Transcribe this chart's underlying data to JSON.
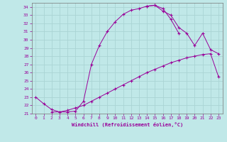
{
  "xlabel": "Windchill (Refroidissement éolien,°C)",
  "xlim": [
    -0.5,
    23.5
  ],
  "ylim": [
    21,
    34.5
  ],
  "yticks": [
    21,
    22,
    23,
    24,
    25,
    26,
    27,
    28,
    29,
    30,
    31,
    32,
    33,
    34
  ],
  "xticks": [
    0,
    1,
    2,
    3,
    4,
    5,
    6,
    7,
    8,
    9,
    10,
    11,
    12,
    13,
    14,
    15,
    16,
    17,
    18,
    19,
    20,
    21,
    22,
    23
  ],
  "bg_color": "#c0e8e8",
  "line_color": "#990099",
  "grid_color": "#aad4d4",
  "curve1_x": [
    0,
    1,
    2,
    3,
    4,
    5,
    6,
    7,
    8,
    9,
    10,
    11,
    12,
    13,
    14,
    15,
    16,
    17,
    18
  ],
  "curve1_y": [
    23.0,
    22.2,
    21.5,
    21.2,
    21.2,
    21.3,
    22.5,
    27.0,
    29.3,
    31.0,
    32.2,
    33.1,
    33.6,
    33.8,
    34.1,
    34.2,
    33.8,
    32.5,
    30.8
  ],
  "curve2_x": [
    2,
    3,
    4,
    5,
    6,
    7,
    8,
    9,
    10,
    11,
    12,
    13,
    14,
    15,
    16,
    17,
    18,
    19,
    20,
    21,
    22,
    23
  ],
  "curve2_y": [
    21.2,
    21.2,
    21.4,
    21.7,
    22.0,
    22.5,
    23.0,
    23.5,
    24.0,
    24.5,
    25.0,
    25.5,
    26.0,
    26.4,
    26.8,
    27.2,
    27.5,
    27.8,
    28.0,
    28.2,
    28.3,
    25.5
  ],
  "curve3_x": [
    14,
    15,
    16,
    17,
    18,
    19,
    20,
    21,
    22,
    23
  ],
  "curve3_y": [
    34.1,
    34.2,
    33.5,
    33.0,
    31.5,
    30.8,
    29.3,
    30.8,
    28.8,
    28.3
  ]
}
